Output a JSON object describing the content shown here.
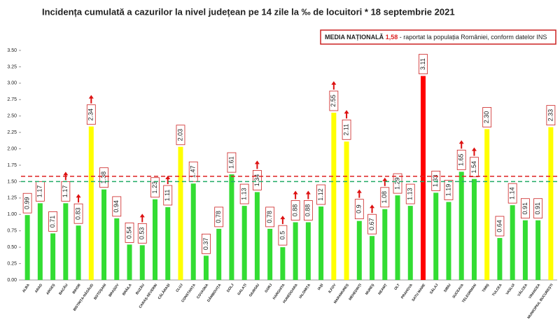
{
  "chart_data": {
    "type": "bar",
    "title": "Incidența cumulată a cazurilor la nivel județean pe 14 zile la ‰ de locuitori *  18 septembrie 2021",
    "note": {
      "label": "MEDIA NAȚIONALĂ",
      "value": "1,58",
      "text": "- raportat la populația României, conform datelor INS"
    },
    "categories": [
      "ALBA",
      "ARAD",
      "ARGEȘ",
      "BACĂU",
      "BIHOR",
      "BISTRIȚA-NĂSĂUD",
      "BOTOȘANI",
      "BRAȘOV",
      "BRĂILA",
      "BUZĂU",
      "CARAȘ-SEVERIN",
      "CĂLĂRAȘI",
      "CLUJ",
      "CONSTANȚA",
      "COVASNA",
      "DÂMBOVIȚA",
      "DOLJ",
      "GALAȚI",
      "GIURGIU",
      "GORJ",
      "HARGHITA",
      "HUNEDOARA",
      "IALOMIȚA",
      "IAȘI",
      "ILFOV",
      "MARAMUREȘ",
      "MEHEDINȚI",
      "MUREȘ",
      "NEAMȚ",
      "OLT",
      "PRAHOVA",
      "SATU MARE",
      "SĂLAJ",
      "SIBIU",
      "SUCEAVA",
      "TELEORMAN",
      "TIMIȘ",
      "TULCEA",
      "VASLUI",
      "VÂLCEA",
      "VRANCEA",
      "MUNICIPIUL BUCUREȘTI"
    ],
    "values": [
      0.99,
      1.17,
      0.71,
      1.17,
      0.83,
      2.34,
      1.38,
      0.94,
      0.54,
      0.53,
      1.23,
      1.11,
      2.03,
      1.47,
      0.37,
      0.78,
      1.61,
      1.13,
      1.34,
      0.78,
      0.5,
      0.88,
      0.88,
      1.12,
      2.55,
      2.11,
      0.9,
      0.67,
      1.08,
      1.29,
      1.13,
      3.11,
      1.33,
      1.19,
      1.65,
      1.54,
      2.3,
      0.64,
      1.14,
      0.91,
      0.91,
      2.33
    ],
    "value_labels": [
      "0.99",
      "1.17",
      "0.71",
      "1.17",
      "0.83",
      "2.34",
      "1.38",
      "0.94",
      "0.54",
      "0.53",
      "1.23",
      "1.11",
      "2.03",
      "1.47",
      "0.37",
      "0.78",
      "1.61",
      "1.13",
      "1.34",
      "0.78",
      "0.5",
      "0.88",
      "0.88",
      "1.12",
      "2.55",
      "2.11",
      "0.9",
      "0.67",
      "1.08",
      "1.29",
      "1.13",
      "3.11",
      "1.33",
      "1.19",
      "1.65",
      "1.54",
      "2.30",
      "0.64",
      "1.14",
      "0.91",
      "0.91",
      "2.33"
    ],
    "colors": [
      "#33dd33",
      "#33dd33",
      "#33dd33",
      "#33dd33",
      "#33dd33",
      "#ffff00",
      "#33dd33",
      "#33dd33",
      "#33dd33",
      "#33dd33",
      "#33dd33",
      "#33dd33",
      "#ffff00",
      "#33dd33",
      "#33dd33",
      "#33dd33",
      "#33dd33",
      "#33dd33",
      "#33dd33",
      "#33dd33",
      "#33dd33",
      "#33dd33",
      "#33dd33",
      "#33dd33",
      "#ffff00",
      "#ffff00",
      "#33dd33",
      "#33dd33",
      "#33dd33",
      "#33dd33",
      "#33dd33",
      "#ff0000",
      "#33dd33",
      "#33dd33",
      "#33dd33",
      "#33dd33",
      "#ffff00",
      "#33dd33",
      "#33dd33",
      "#33dd33",
      "#33dd33",
      "#ffff00"
    ],
    "arrows": [
      false,
      false,
      false,
      true,
      true,
      true,
      false,
      false,
      false,
      true,
      false,
      true,
      false,
      false,
      false,
      false,
      false,
      false,
      true,
      false,
      true,
      true,
      true,
      false,
      true,
      true,
      true,
      true,
      true,
      false,
      false,
      false,
      false,
      false,
      true,
      true,
      false,
      false,
      false,
      false,
      false,
      false
    ],
    "reference_lines": [
      {
        "value": 1.58,
        "color": "#dd2222"
      },
      {
        "value": 1.5,
        "color": "#22aa66"
      }
    ],
    "ylim": [
      0,
      3.5
    ],
    "yticks": [
      {
        "value": 0,
        "label": "0.00"
      },
      {
        "value": 0.25,
        "label": "0.25"
      },
      {
        "value": 0.5,
        "label": "0.50"
      },
      {
        "value": 0.75,
        "label": "0.75"
      },
      {
        "value": 1,
        "label": "1.00"
      },
      {
        "value": 1.25,
        "label": "1.25"
      },
      {
        "value": 1.5,
        "label": "1.50"
      },
      {
        "value": 1.75,
        "label": "1.75"
      },
      {
        "value": 2,
        "label": "2.00"
      },
      {
        "value": 2.25,
        "label": "2.25"
      },
      {
        "value": 2.5,
        "label": "2.50"
      },
      {
        "value": 2.75,
        "label": "2.75"
      },
      {
        "value": 3,
        "label": "3.00"
      },
      {
        "value": 3.25,
        "label": "3.25"
      },
      {
        "value": 3.5,
        "label": "3.50"
      }
    ],
    "grid": false
  }
}
